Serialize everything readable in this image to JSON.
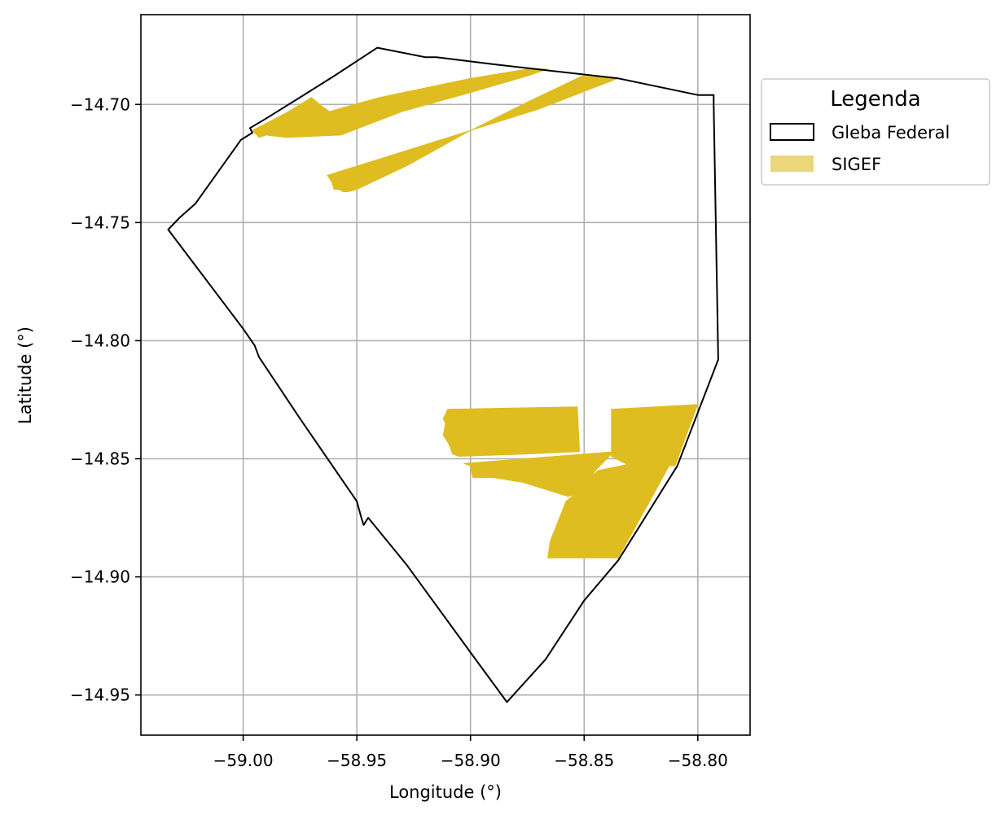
{
  "chart_data": {
    "type": "map",
    "xlabel": "Longitude (°)",
    "ylabel": "Latitude (°)",
    "xlim": [
      -59.045,
      -58.777
    ],
    "ylim": [
      -14.967,
      -14.662
    ],
    "xticks": [
      -59.0,
      -58.95,
      -58.9,
      -58.85,
      -58.8
    ],
    "xtick_labels": [
      "−59.00",
      "−58.95",
      "−58.90",
      "−58.85",
      "−58.80"
    ],
    "yticks": [
      -14.7,
      -14.75,
      -14.8,
      -14.85,
      -14.9,
      -14.95
    ],
    "ytick_labels": [
      "−14.70",
      "−14.75",
      "−14.80",
      "−14.85",
      "−14.90",
      "−14.95"
    ],
    "grid": true,
    "legend": {
      "title": "Legenda",
      "placement": "outside-right-top",
      "entries": [
        {
          "label": "Gleba Federal",
          "style": "outline",
          "color": "#000000"
        },
        {
          "label": "SIGEF",
          "style": "fill",
          "color": "#ebd77a"
        }
      ]
    },
    "colors": {
      "boundary": "#000000",
      "sigef": "#dfbd20",
      "grid": "#b0b0b0"
    },
    "layers": {
      "gleba_federal": [
        [
          -58.941,
          -14.676
        ],
        [
          -58.92,
          -14.68
        ],
        [
          -58.915,
          -14.68
        ],
        [
          -58.89,
          -14.683
        ],
        [
          -58.835,
          -14.689
        ],
        [
          -58.8,
          -14.696
        ],
        [
          -58.793,
          -14.696
        ],
        [
          -58.793,
          -14.7
        ],
        [
          -58.791,
          -14.808
        ],
        [
          -58.809,
          -14.853
        ],
        [
          -58.835,
          -14.893
        ],
        [
          -58.85,
          -14.91
        ],
        [
          -58.867,
          -14.935
        ],
        [
          -58.884,
          -14.953
        ],
        [
          -58.9,
          -14.932
        ],
        [
          -58.928,
          -14.895
        ],
        [
          -58.945,
          -14.875
        ],
        [
          -58.947,
          -14.878
        ],
        [
          -58.948,
          -14.875
        ],
        [
          -58.95,
          -14.868
        ],
        [
          -58.975,
          -14.833
        ],
        [
          -58.993,
          -14.807
        ],
        [
          -58.995,
          -14.802
        ],
        [
          -59.0,
          -14.795
        ],
        [
          -59.033,
          -14.753
        ],
        [
          -59.028,
          -14.748
        ],
        [
          -59.021,
          -14.742
        ],
        [
          -59.001,
          -14.715
        ],
        [
          -58.996,
          -14.712
        ],
        [
          -58.997,
          -14.71
        ],
        [
          -58.99,
          -14.706
        ],
        [
          -58.975,
          -14.697
        ],
        [
          -58.96,
          -14.688
        ],
        [
          -58.941,
          -14.676
        ]
      ],
      "sigef": [
        {
          "name": "SIGEF-north-a",
          "polygon": [
            [
              -58.996,
              -14.711
            ],
            [
              -58.98,
              -14.703
            ],
            [
              -58.97,
              -14.697
            ],
            [
              -58.965,
              -14.701
            ],
            [
              -58.962,
              -14.703
            ],
            [
              -58.955,
              -14.701
            ],
            [
              -58.94,
              -14.697
            ],
            [
              -58.9,
              -14.689
            ],
            [
              -58.875,
              -14.685
            ],
            [
              -58.866,
              -14.685
            ],
            [
              -58.875,
              -14.688
            ],
            [
              -58.9,
              -14.695
            ],
            [
              -58.93,
              -14.703
            ],
            [
              -58.957,
              -14.713
            ],
            [
              -58.981,
              -14.714
            ],
            [
              -58.99,
              -14.713
            ],
            [
              -58.993,
              -14.714
            ],
            [
              -58.994,
              -14.713
            ],
            [
              -58.996,
              -14.711
            ]
          ]
        },
        {
          "name": "SIGEF-north-b",
          "polygon": [
            [
              -58.963,
              -14.73
            ],
            [
              -58.9,
              -14.711
            ],
            [
              -58.87,
              -14.702
            ],
            [
              -58.835,
              -14.689
            ],
            [
              -58.851,
              -14.688
            ],
            [
              -58.875,
              -14.699
            ],
            [
              -58.9,
              -14.711
            ],
            [
              -58.928,
              -14.726
            ],
            [
              -58.95,
              -14.736
            ],
            [
              -58.954,
              -14.737
            ],
            [
              -58.956,
              -14.737
            ],
            [
              -58.958,
              -14.736
            ],
            [
              -58.96,
              -14.736
            ],
            [
              -58.961,
              -14.733
            ],
            [
              -58.963,
              -14.73
            ]
          ]
        },
        {
          "name": "SIGEF-south-west",
          "polygon": [
            [
              -58.91,
              -14.829
            ],
            [
              -58.853,
              -14.828
            ],
            [
              -58.852,
              -14.847
            ],
            [
              -58.875,
              -14.848
            ],
            [
              -58.905,
              -14.849
            ],
            [
              -58.908,
              -14.848
            ],
            [
              -58.909,
              -14.845
            ],
            [
              -58.91,
              -14.843
            ],
            [
              -58.912,
              -14.84
            ],
            [
              -58.911,
              -14.835
            ],
            [
              -58.912,
              -14.833
            ],
            [
              -58.91,
              -14.829
            ]
          ]
        },
        {
          "name": "SIGEF-south-middle",
          "polygon": [
            [
              -58.903,
              -14.852
            ],
            [
              -58.837,
              -14.847
            ],
            [
              -58.845,
              -14.855
            ],
            [
              -58.851,
              -14.864
            ],
            [
              -58.857,
              -14.866
            ],
            [
              -58.877,
              -14.86
            ],
            [
              -58.89,
              -14.858
            ],
            [
              -58.895,
              -14.858
            ],
            [
              -58.899,
              -14.858
            ],
            [
              -58.9,
              -14.853
            ],
            [
              -58.903,
              -14.852
            ]
          ]
        },
        {
          "name": "SIGEF-south-east-top",
          "polygon": [
            [
              -58.838,
              -14.829
            ],
            [
              -58.8,
              -14.827
            ],
            [
              -58.81,
              -14.853
            ],
            [
              -58.83,
              -14.853
            ],
            [
              -58.838,
              -14.849
            ],
            [
              -58.838,
              -14.838
            ],
            [
              -58.838,
              -14.829
            ]
          ]
        },
        {
          "name": "SIGEF-south-east-bottom",
          "polygon": [
            [
              -58.829,
              -14.852
            ],
            [
              -58.812,
              -14.852
            ],
            [
              -58.82,
              -14.866
            ],
            [
              -58.835,
              -14.892
            ],
            [
              -58.866,
              -14.892
            ],
            [
              -58.865,
              -14.885
            ],
            [
              -58.858,
              -14.868
            ],
            [
              -58.853,
              -14.864
            ],
            [
              -58.844,
              -14.855
            ],
            [
              -58.829,
              -14.852
            ]
          ]
        }
      ]
    }
  }
}
